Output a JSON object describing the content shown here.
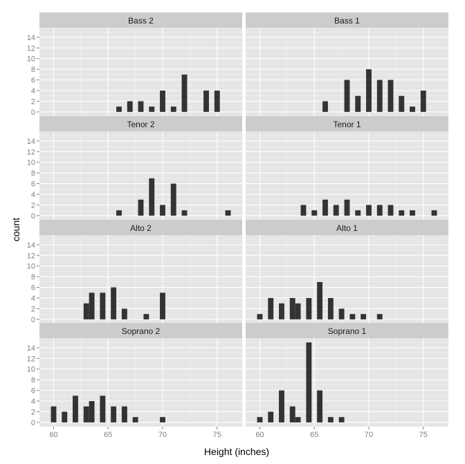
{
  "chart_data": {
    "type": "bar",
    "subtype": "faceted-histogram",
    "xlabel": "Height (inches)",
    "ylabel": "count",
    "xlim": [
      58.7,
      77.3
    ],
    "ylim": [
      -0.8,
      15.8
    ],
    "xticks": [
      60,
      65,
      70,
      75
    ],
    "yticks": [
      0,
      2,
      4,
      6,
      8,
      10,
      12,
      14
    ],
    "bin_width": 0.5,
    "facet_cols": 2,
    "colors": {
      "bar": "#333333",
      "panel_bg": "#e5e5e5",
      "strip_bg": "#cccccc",
      "grid_major": "#ffffff",
      "grid_minor": "#f2f2f2"
    },
    "facets": [
      {
        "label": "Bass 2",
        "bins": [
          [
            66,
            1
          ],
          [
            67,
            2
          ],
          [
            68,
            2
          ],
          [
            69,
            1
          ],
          [
            70,
            4
          ],
          [
            71,
            1
          ],
          [
            72,
            7
          ],
          [
            74,
            4
          ],
          [
            75,
            4
          ]
        ]
      },
      {
        "label": "Bass 1",
        "bins": [
          [
            66,
            2
          ],
          [
            68,
            6
          ],
          [
            69,
            3
          ],
          [
            70,
            8
          ],
          [
            71,
            6
          ],
          [
            72,
            6
          ],
          [
            73,
            3
          ],
          [
            74,
            1
          ],
          [
            75,
            4
          ]
        ]
      },
      {
        "label": "Tenor 2",
        "bins": [
          [
            66,
            1
          ],
          [
            68,
            3
          ],
          [
            69,
            7
          ],
          [
            70,
            2
          ],
          [
            71,
            6
          ],
          [
            72,
            1
          ],
          [
            76,
            1
          ]
        ]
      },
      {
        "label": "Tenor 1",
        "bins": [
          [
            64,
            2
          ],
          [
            65,
            1
          ],
          [
            66,
            3
          ],
          [
            67,
            2
          ],
          [
            68,
            3
          ],
          [
            69,
            1
          ],
          [
            70,
            2
          ],
          [
            71,
            2
          ],
          [
            72,
            2
          ],
          [
            73,
            1
          ],
          [
            74,
            1
          ],
          [
            76,
            1
          ]
        ]
      },
      {
        "label": "Alto 2",
        "bins": [
          [
            63,
            3
          ],
          [
            63.5,
            5
          ],
          [
            64.5,
            5
          ],
          [
            65.5,
            6
          ],
          [
            66.5,
            2
          ],
          [
            68.5,
            1
          ],
          [
            70,
            5
          ]
        ]
      },
      {
        "label": "Alto 1",
        "bins": [
          [
            60,
            1
          ],
          [
            61,
            4
          ],
          [
            62,
            3
          ],
          [
            63,
            4
          ],
          [
            63.5,
            3
          ],
          [
            64.5,
            4
          ],
          [
            65.5,
            7
          ],
          [
            66.5,
            4
          ],
          [
            67.5,
            2
          ],
          [
            68.5,
            1
          ],
          [
            69.5,
            1
          ],
          [
            71,
            1
          ]
        ]
      },
      {
        "label": "Soprano 2",
        "bins": [
          [
            60,
            3
          ],
          [
            61,
            2
          ],
          [
            62,
            5
          ],
          [
            63,
            3
          ],
          [
            63.5,
            4
          ],
          [
            64.5,
            5
          ],
          [
            65.5,
            3
          ],
          [
            66.5,
            3
          ],
          [
            67.5,
            1
          ],
          [
            70,
            1
          ]
        ]
      },
      {
        "label": "Soprano 1",
        "bins": [
          [
            60,
            1
          ],
          [
            61,
            2
          ],
          [
            62,
            6
          ],
          [
            63,
            3
          ],
          [
            63.5,
            1
          ],
          [
            64.5,
            15
          ],
          [
            65.5,
            6
          ],
          [
            66.5,
            1
          ],
          [
            67.5,
            1
          ]
        ]
      }
    ]
  }
}
